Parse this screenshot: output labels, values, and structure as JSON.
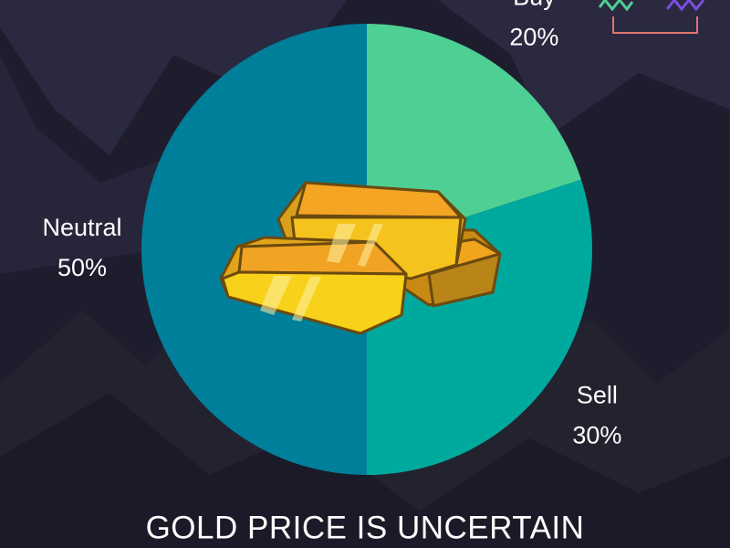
{
  "chart_data": {
    "type": "pie",
    "title": "GOLD PRICE IS UNCERTAIN",
    "categories": [
      "Buy",
      "Sell",
      "Neutral"
    ],
    "values": [
      20,
      30,
      50
    ],
    "value_labels": [
      "20%",
      "30%",
      "50%"
    ],
    "colors": [
      "#4ecf94",
      "#00a99d",
      "#007f9a"
    ]
  }
}
